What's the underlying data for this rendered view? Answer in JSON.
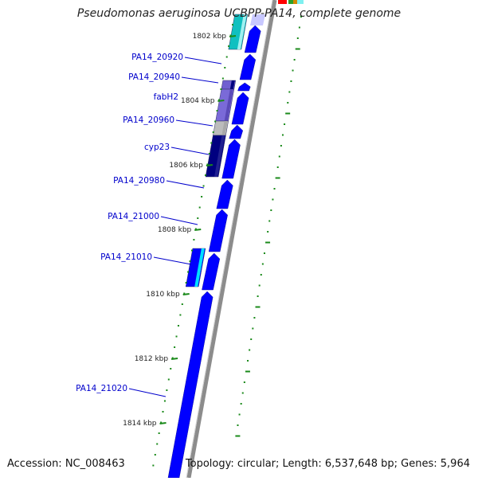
{
  "title": "Pseudomonas aeruginosa UCBPP-PA14, complete genome",
  "accession": "Accession: NC_008463",
  "topology": "Topology: circular; Length: 6,537,648 bp; Genes: 5,964",
  "colors": {
    "gene_forward": "#0000ff",
    "gene_label": "#0000cc",
    "tick": "#1a8a1a",
    "backbone": "#8c8c8c",
    "gc_track": "#1a8a1a"
  },
  "kbp_ticks": [
    {
      "label": "1802 kbp"
    },
    {
      "label": "1804 kbp"
    },
    {
      "label": "1806 kbp"
    },
    {
      "label": "1808 kbp"
    },
    {
      "label": "1810 kbp"
    },
    {
      "label": "1812 kbp"
    },
    {
      "label": "1814 kbp"
    }
  ],
  "gene_labels": [
    {
      "label": "PA14_20920"
    },
    {
      "label": "PA14_20940"
    },
    {
      "label": "fabH2"
    },
    {
      "label": "PA14_20960"
    },
    {
      "label": "cyp23"
    },
    {
      "label": "PA14_20980"
    },
    {
      "label": "PA14_21000"
    },
    {
      "label": "PA14_21010"
    },
    {
      "label": "PA14_21020"
    }
  ]
}
